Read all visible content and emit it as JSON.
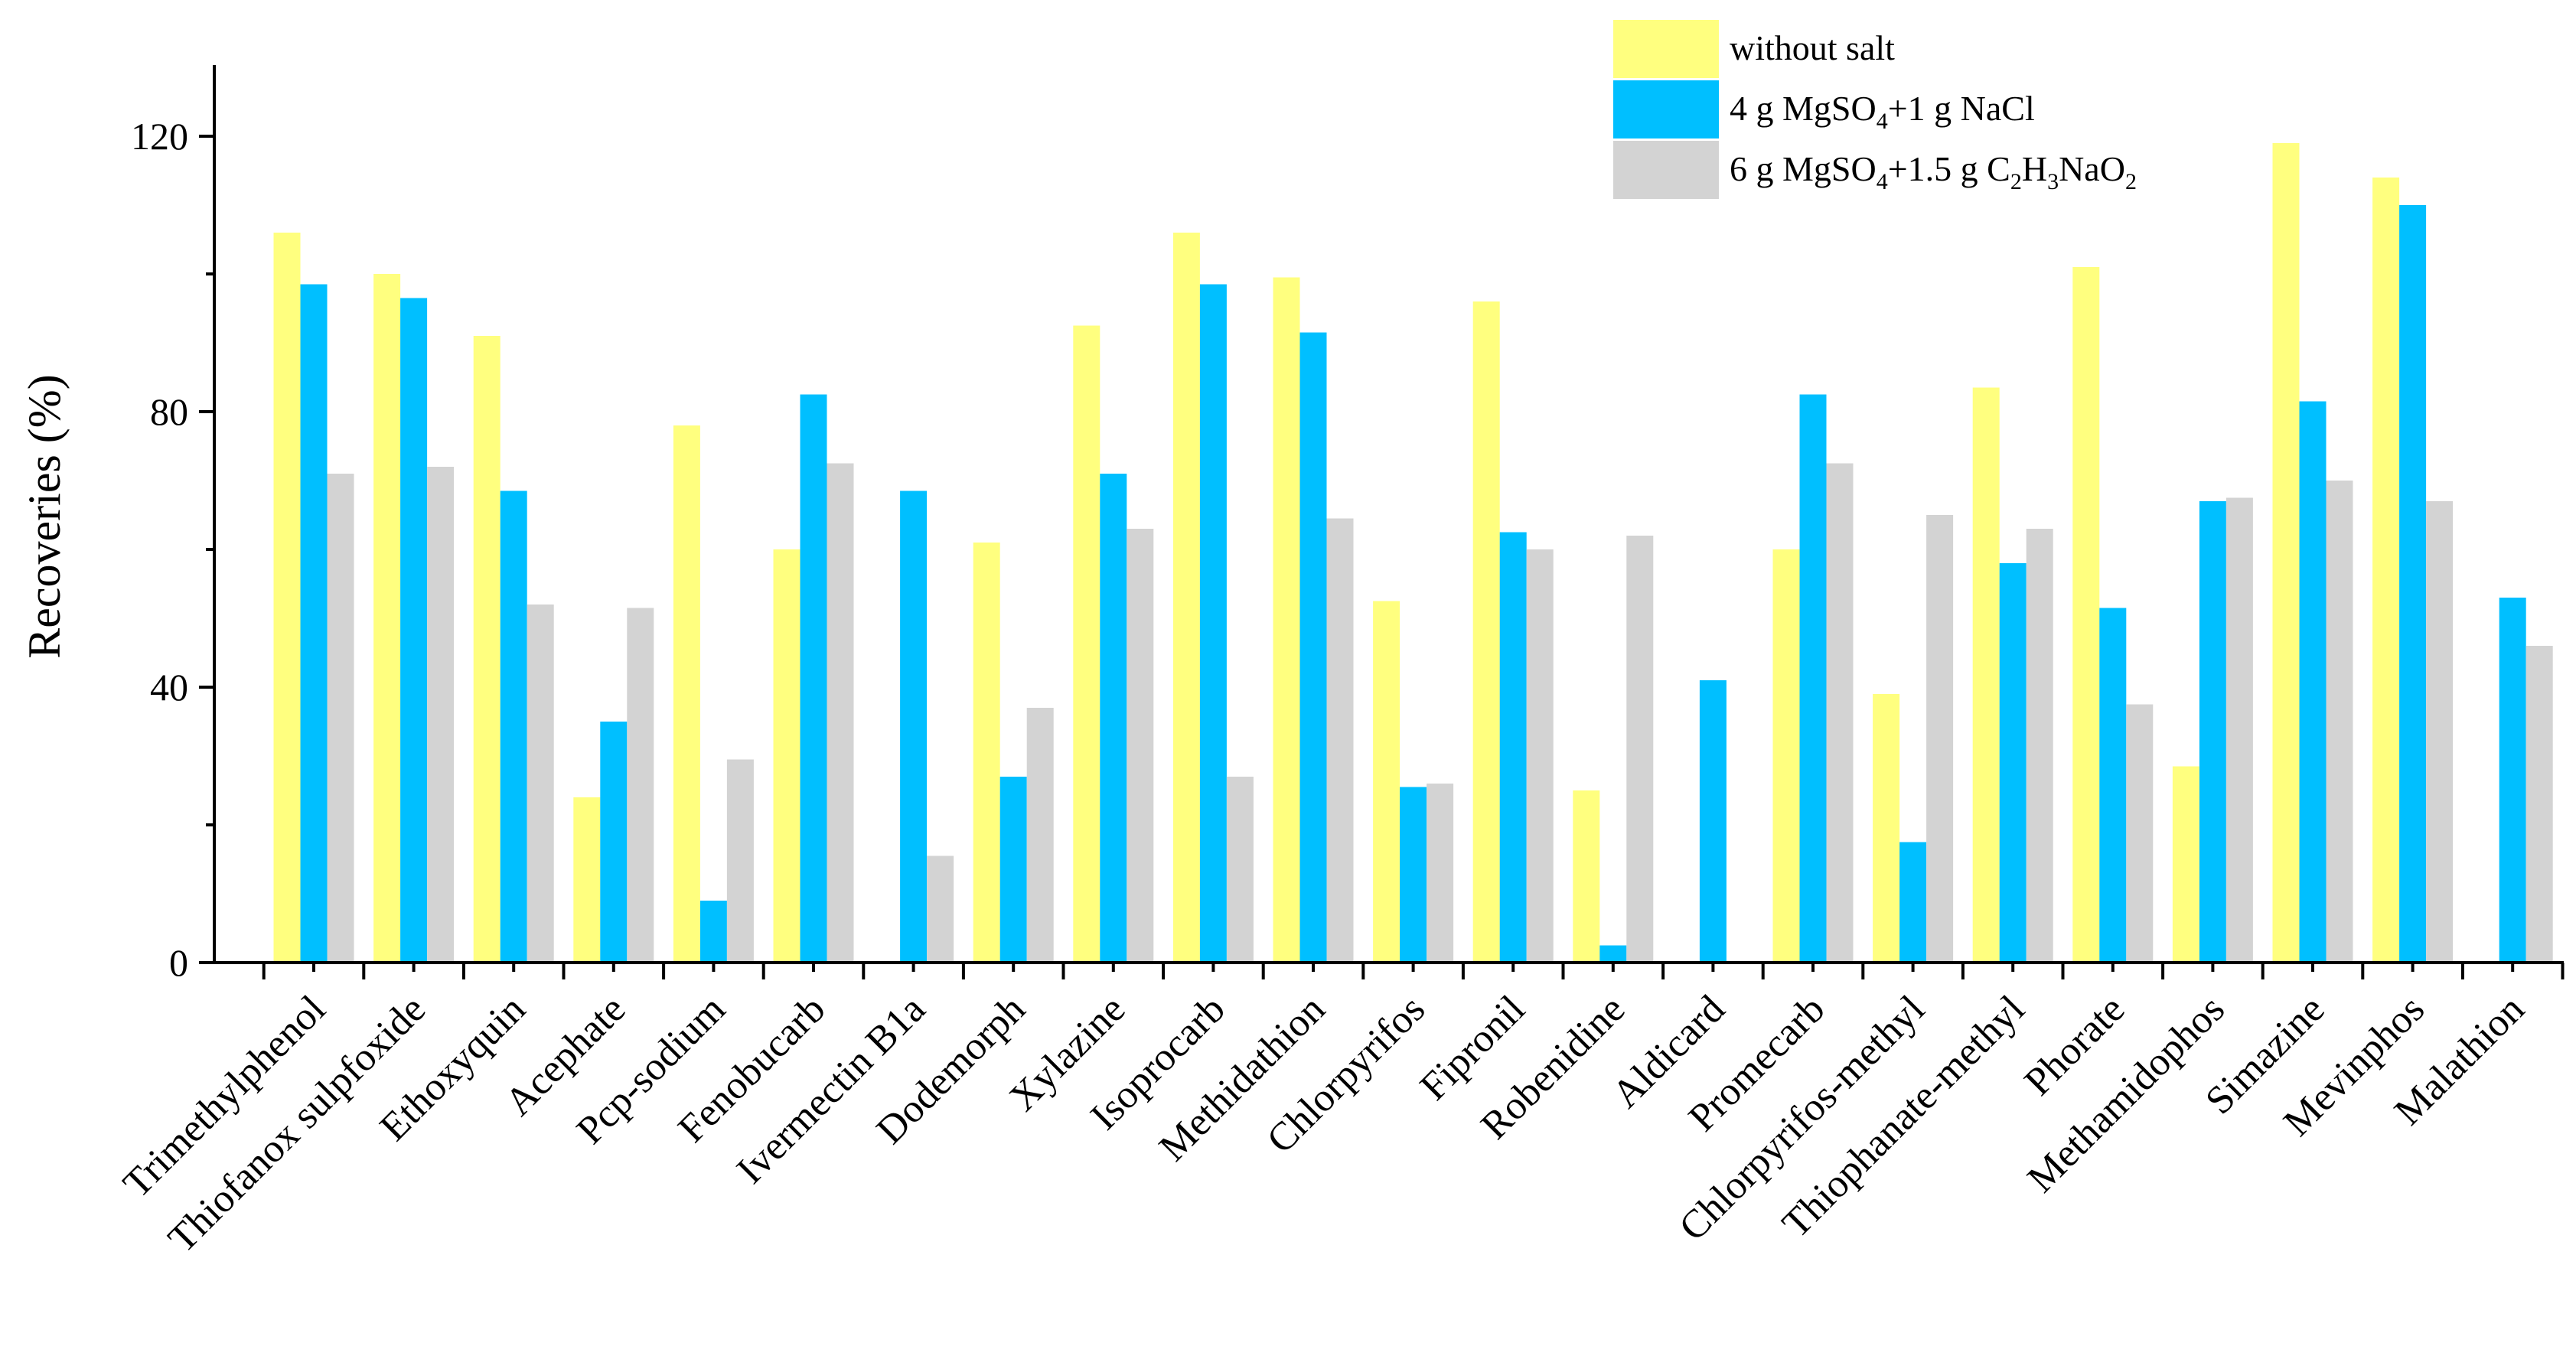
{
  "chart_data": {
    "type": "bar",
    "title": "",
    "xlabel": "",
    "ylabel": "Recoveries (%)",
    "ylim": [
      0,
      130
    ],
    "yticks": [
      0,
      40,
      80,
      120
    ],
    "grid": false,
    "legend_position": "top-right",
    "categories": [
      "Trimethylphenol",
      "Thiofanox sulpfoxide",
      "Ethoxyquin",
      "Acephate",
      "Pcp-sodium",
      "Fenobucarb",
      "Ivermectin B1a",
      "Dodemorph",
      "Xylazine",
      "Isoprocarb",
      "Methidathion",
      "Chlorpyrifos",
      "Fipronil",
      "Robenidine",
      "Aldicard",
      "Promecarb",
      "Chlorpyrifos-methyl",
      "Thiophanate-methyl",
      "Phorate",
      "Methamidophos",
      "Simazine",
      "Mevinphos",
      "Malathion"
    ],
    "series": [
      {
        "name": "without salt",
        "label_parts": [
          {
            "t": "without salt"
          }
        ],
        "color": "#ffff7f",
        "values": [
          106,
          100,
          91,
          24,
          78,
          60,
          0,
          61,
          92.5,
          106,
          99.5,
          52.5,
          96,
          25,
          0,
          60,
          39,
          83.5,
          101,
          28.5,
          119,
          114,
          0
        ]
      },
      {
        "name": "4 g MgSO4+1 g NaCl",
        "label_parts": [
          {
            "t": "4 g MgSO"
          },
          {
            "t": "4",
            "sub": true
          },
          {
            "t": "+1 g NaCl"
          }
        ],
        "color": "#00bfff",
        "values": [
          98.5,
          96.5,
          68.5,
          35,
          9,
          82.5,
          68.5,
          27,
          71,
          98.5,
          91.5,
          25.5,
          62.5,
          2.5,
          41,
          82.5,
          17.5,
          58,
          51.5,
          67,
          81.5,
          110,
          53
        ]
      },
      {
        "name": "6 g MgSO4+1.5 g C2H3NaO2",
        "label_parts": [
          {
            "t": "6 g MgSO"
          },
          {
            "t": "4",
            "sub": true
          },
          {
            "t": "+1.5 g C"
          },
          {
            "t": "2",
            "sub": true
          },
          {
            "t": "H"
          },
          {
            "t": "3",
            "sub": true
          },
          {
            "t": "NaO"
          },
          {
            "t": "2",
            "sub": true
          }
        ],
        "color": "#d3d3d3",
        "values": [
          71,
          72,
          52,
          51.5,
          29.5,
          72.5,
          15.5,
          37,
          63,
          27,
          64.5,
          26,
          60,
          62,
          0,
          72.5,
          65,
          63,
          37.5,
          67.5,
          70,
          67,
          46
        ]
      }
    ]
  }
}
